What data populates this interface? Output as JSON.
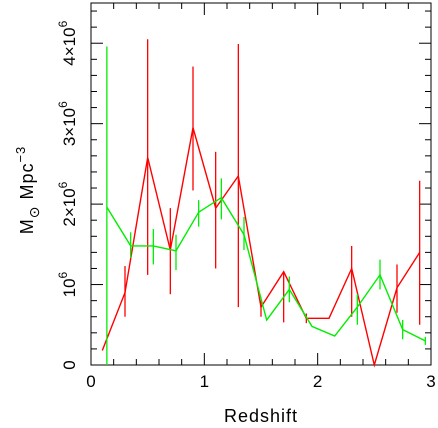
{
  "chart_data": {
    "type": "line",
    "xlabel": "Redshift",
    "ylabel": {
      "base": "M",
      "subscript": "⊙",
      "unit": " Mpc",
      "superscript": "−3"
    },
    "xlim": [
      0,
      3
    ],
    "ylim": [
      0,
      4500000
    ],
    "x_ticks": [
      {
        "value": 0,
        "label": "0"
      },
      {
        "value": 1,
        "label": "1"
      },
      {
        "value": 2,
        "label": "2"
      },
      {
        "value": 3,
        "label": "3"
      }
    ],
    "y_ticks": [
      {
        "value": 0,
        "coef": "0",
        "exp": ""
      },
      {
        "value": 1000000,
        "coef": "10",
        "exp": "6"
      },
      {
        "value": 2000000,
        "coef": "2×10",
        "exp": "6"
      },
      {
        "value": 3000000,
        "coef": "3×10",
        "exp": "6"
      },
      {
        "value": 4000000,
        "coef": "4×10",
        "exp": "6"
      }
    ],
    "grid": false,
    "series": [
      {
        "color": "#ff0000",
        "points": [
          {
            "x": 0.1,
            "y": 180000,
            "lo": 180000,
            "hi": 180000
          },
          {
            "x": 0.3,
            "y": 900000,
            "lo": 600000,
            "hi": 1230000
          },
          {
            "x": 0.5,
            "y": 2580000,
            "lo": 1120000,
            "hi": 4050000
          },
          {
            "x": 0.7,
            "y": 1430000,
            "lo": 880000,
            "hi": 1950000
          },
          {
            "x": 0.9,
            "y": 2950000,
            "lo": 2170000,
            "hi": 3710000
          },
          {
            "x": 1.1,
            "y": 1950000,
            "lo": 1200000,
            "hi": 2650000
          },
          {
            "x": 1.3,
            "y": 2350000,
            "lo": 720000,
            "hi": 3990000
          },
          {
            "x": 1.5,
            "y": 720000,
            "lo": 600000,
            "hi": 800000
          },
          {
            "x": 1.7,
            "y": 1160000,
            "lo": 530000,
            "hi": 1160000
          },
          {
            "x": 1.9,
            "y": 580000,
            "lo": 520000,
            "hi": 640000
          },
          {
            "x": 2.1,
            "y": 580000,
            "lo": 580000,
            "hi": 580000
          },
          {
            "x": 2.3,
            "y": 1200000,
            "lo": 600000,
            "hi": 1480000
          },
          {
            "x": 2.5,
            "y": 0,
            "lo": 0,
            "hi": 0
          },
          {
            "x": 2.7,
            "y": 960000,
            "lo": 650000,
            "hi": 1250000
          },
          {
            "x": 2.9,
            "y": 1400000,
            "lo": 500000,
            "hi": 2290000
          }
        ]
      },
      {
        "color": "#00ee00",
        "points": [
          {
            "x": 0.14,
            "y": 1960000,
            "lo": 0,
            "hi": 3960000
          },
          {
            "x": 0.35,
            "y": 1480000,
            "lo": 1330000,
            "hi": 1650000
          },
          {
            "x": 0.55,
            "y": 1480000,
            "lo": 1250000,
            "hi": 1690000
          },
          {
            "x": 0.75,
            "y": 1420000,
            "lo": 1180000,
            "hi": 1620000
          },
          {
            "x": 0.95,
            "y": 1900000,
            "lo": 1720000,
            "hi": 2050000
          },
          {
            "x": 1.15,
            "y": 2080000,
            "lo": 1810000,
            "hi": 2320000
          },
          {
            "x": 1.35,
            "y": 1620000,
            "lo": 1430000,
            "hi": 1840000
          },
          {
            "x": 1.55,
            "y": 560000,
            "lo": 560000,
            "hi": 560000
          },
          {
            "x": 1.75,
            "y": 940000,
            "lo": 780000,
            "hi": 1100000
          },
          {
            "x": 1.95,
            "y": 480000,
            "lo": 480000,
            "hi": 480000
          },
          {
            "x": 2.15,
            "y": 360000,
            "lo": 360000,
            "hi": 360000
          },
          {
            "x": 2.35,
            "y": 720000,
            "lo": 500000,
            "hi": 880000
          },
          {
            "x": 2.55,
            "y": 1120000,
            "lo": 940000,
            "hi": 1310000
          },
          {
            "x": 2.75,
            "y": 440000,
            "lo": 320000,
            "hi": 560000
          },
          {
            "x": 2.95,
            "y": 300000,
            "lo": 250000,
            "hi": 350000
          }
        ]
      }
    ]
  }
}
